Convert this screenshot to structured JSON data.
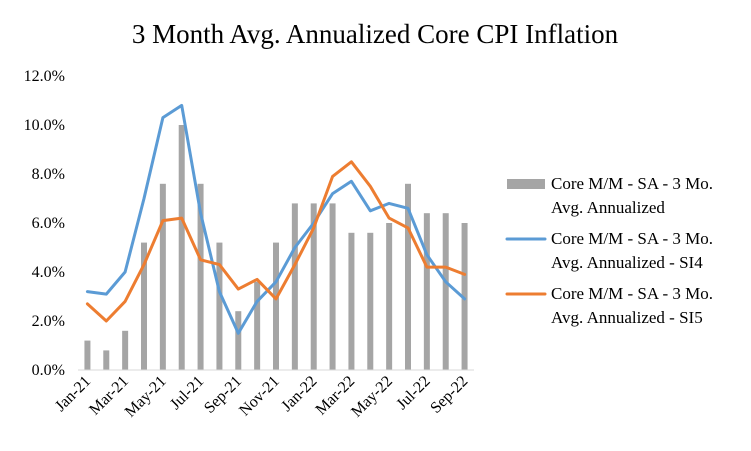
{
  "chart_data": {
    "type": "bar+line",
    "title": "3 Month Avg. Annualized  Core CPI Inflation",
    "xlabel": "",
    "ylabel": "",
    "ylim": [
      0,
      12
    ],
    "y_ticks": [
      "0.0%",
      "2.0%",
      "4.0%",
      "6.0%",
      "8.0%",
      "10.0%",
      "12.0%"
    ],
    "y_tick_values": [
      0,
      2,
      4,
      6,
      8,
      10,
      12
    ],
    "categories": [
      "Jan-21",
      "Feb-21",
      "Mar-21",
      "Apr-21",
      "May-21",
      "Jun-21",
      "Jul-21",
      "Aug-21",
      "Sep-21",
      "Oct-21",
      "Nov-21",
      "Dec-21",
      "Jan-22",
      "Feb-22",
      "Mar-22",
      "Apr-22",
      "May-22",
      "Jun-22",
      "Jul-22",
      "Aug-22",
      "Sep-22"
    ],
    "x_tick_labels": [
      "Jan-21",
      "Mar-21",
      "May-21",
      "Jul-21",
      "Sep-21",
      "Nov-21",
      "Jan-22",
      "Mar-22",
      "May-22",
      "Jul-22",
      "Sep-22"
    ],
    "series": [
      {
        "name": "Core M/M - SA - 3 Mo. Avg. Annualized",
        "legend_lines": [
          "Core M/M - SA - 3 Mo.",
          "Avg. Annualized"
        ],
        "kind": "bar",
        "color": "#a5a5a5",
        "values": [
          1.2,
          0.8,
          1.6,
          5.2,
          7.6,
          10.0,
          7.6,
          5.2,
          2.4,
          3.6,
          5.2,
          6.8,
          6.8,
          6.8,
          5.6,
          5.6,
          6.0,
          7.6,
          6.4,
          6.4,
          6.0
        ]
      },
      {
        "name": "Core M/M - SA - 3 Mo. Avg. Annualized - SI4",
        "legend_lines": [
          "Core M/M - SA - 3 Mo.",
          "Avg. Annualized - SI4"
        ],
        "kind": "line",
        "color": "#5b9bd5",
        "values": [
          3.2,
          3.1,
          4.0,
          7.0,
          10.3,
          10.8,
          6.4,
          3.2,
          1.5,
          2.8,
          3.6,
          5.0,
          6.0,
          7.2,
          7.7,
          6.5,
          6.8,
          6.6,
          4.7,
          3.6,
          2.9
        ]
      },
      {
        "name": "Core M/M - SA - 3 Mo. Avg. Annualized - SI5",
        "legend_lines": [
          "Core M/M - SA - 3 Mo.",
          "Avg. Annualized - SI5"
        ],
        "kind": "line",
        "color": "#ed7d31",
        "values": [
          2.7,
          2.0,
          2.8,
          4.3,
          6.1,
          6.2,
          4.5,
          4.3,
          3.3,
          3.7,
          2.9,
          4.3,
          5.8,
          7.9,
          8.5,
          7.5,
          6.2,
          5.8,
          4.2,
          4.2,
          3.9
        ]
      }
    ],
    "legend_position": "right",
    "grid": false
  }
}
